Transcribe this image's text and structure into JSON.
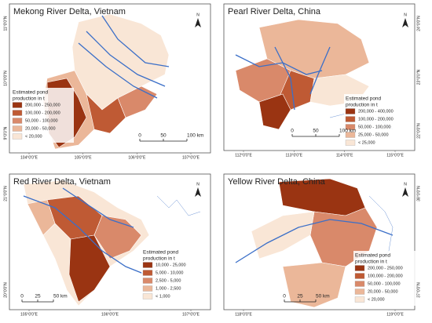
{
  "panels": [
    {
      "title": "Mekong River Delta, Vietnam",
      "north": "N",
      "legend_title": [
        "Estimated pond",
        "production in t"
      ],
      "legend": [
        {
          "label": "200,000 - 250,000",
          "color": "#9a3412"
        },
        {
          "label": "100,000 - 200,000",
          "color": "#bf5a34"
        },
        {
          "label": "50,000 - 100,000",
          "color": "#d9896a"
        },
        {
          "label": "20,000 - 50,000",
          "color": "#ebb799"
        },
        {
          "label": "< 20,000",
          "color": "#f9e6d6"
        }
      ],
      "scale": [
        "0",
        "50",
        "100 km"
      ],
      "x_labels": [
        "104°0'0\"E",
        "105°0'0\"E",
        "106°0'0\"E",
        "107°0'0\"E"
      ],
      "y_labels": [
        "11°0'0\"N",
        "10°0'0\"N",
        "9°0'0\"N"
      ]
    },
    {
      "title": "Pearl River Delta, China",
      "north": "N",
      "legend_title": [
        "Estimated pond",
        "production in t"
      ],
      "legend": [
        {
          "label": "200,000 - 400,000",
          "color": "#9a3412"
        },
        {
          "label": "100,000 - 200,000",
          "color": "#bf5a34"
        },
        {
          "label": "50,000 - 100,000",
          "color": "#d9896a"
        },
        {
          "label": "25,000 - 50,000",
          "color": "#ebb799"
        },
        {
          "label": "< 25,000",
          "color": "#f9e6d6"
        }
      ],
      "scale": [
        "0",
        "50",
        "100 km"
      ],
      "x_labels": [
        "112°0'0\"E",
        "113°0'0\"E",
        "114°0'0\"E",
        "115°0'0\"E"
      ],
      "y_labels": [
        "24°0'0\"N",
        "23°0'0\"N",
        "22°0'0\"N"
      ]
    },
    {
      "title": "Red River Delta, Vietnam",
      "north": "N",
      "legend_title": [
        "Estimated pond",
        "production in t"
      ],
      "legend": [
        {
          "label": "10,000 - 25,000",
          "color": "#9a3412"
        },
        {
          "label": "5,000 - 10,000",
          "color": "#bf5a34"
        },
        {
          "label": "2,500 - 5,000",
          "color": "#d9896a"
        },
        {
          "label": "1,000 - 2,500",
          "color": "#ebb799"
        },
        {
          "label": "< 1,000",
          "color": "#f9e6d6"
        }
      ],
      "scale": [
        "0",
        "25",
        "50 km"
      ],
      "x_labels": [
        "105°0'0\"E",
        "106°0'0\"E",
        "107°0'0\"E"
      ],
      "y_labels": [
        "21°0'0\"N",
        "20°0'0\"N"
      ]
    },
    {
      "title": "Yellow River Delta, China",
      "north": "N",
      "legend_title": [
        "Estimated pond",
        "production in t"
      ],
      "legend": [
        {
          "label": "200,000 - 250,000",
          "color": "#9a3412"
        },
        {
          "label": "100,000 - 200,000",
          "color": "#bf5a34"
        },
        {
          "label": "50,000 - 100,000",
          "color": "#d9896a"
        },
        {
          "label": "20,000 - 50,000",
          "color": "#ebb799"
        },
        {
          "label": "< 20,000",
          "color": "#f9e6d6"
        }
      ],
      "scale": [
        "0",
        "25",
        "50 km"
      ],
      "x_labels": [
        "118°0'0\"E",
        "119°0'0\"E"
      ],
      "y_labels": [
        "38°0'0\"N",
        "37°0'0\"N"
      ]
    }
  ]
}
